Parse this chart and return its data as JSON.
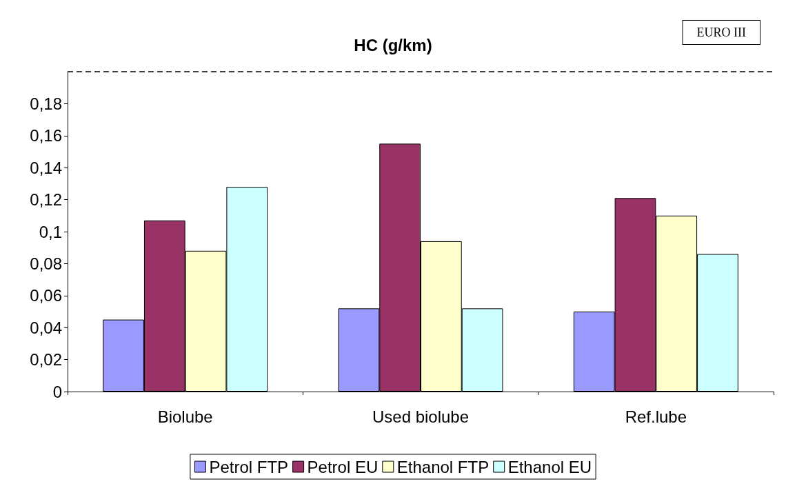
{
  "chart_data": {
    "type": "bar",
    "title": "HC (g/km)",
    "categories": [
      "Biolube",
      "Used biolube",
      "Ref.lube"
    ],
    "series": [
      {
        "name": "Petrol FTP",
        "color": "#9999ff",
        "values": [
          0.045,
          0.052,
          0.05
        ]
      },
      {
        "name": "Petrol EU",
        "color": "#993366",
        "values": [
          0.107,
          0.155,
          0.121
        ]
      },
      {
        "name": "Ethanol FTP",
        "color": "#ffffcc",
        "values": [
          0.088,
          0.094,
          0.11
        ]
      },
      {
        "name": "Ethanol EU",
        "color": "#ccffff",
        "values": [
          0.128,
          0.052,
          0.086
        ]
      }
    ],
    "ylim": [
      0,
      0.2
    ],
    "yticks": [
      {
        "value": 0,
        "label": "0"
      },
      {
        "value": 0.02,
        "label": "0,02"
      },
      {
        "value": 0.04,
        "label": "0,04"
      },
      {
        "value": 0.06,
        "label": "0,06"
      },
      {
        "value": 0.08,
        "label": "0,08"
      },
      {
        "value": 0.1,
        "label": "0,1"
      },
      {
        "value": 0.12,
        "label": "0,12"
      },
      {
        "value": 0.14,
        "label": "0,14"
      },
      {
        "value": 0.16,
        "label": "0,16"
      },
      {
        "value": 0.18,
        "label": "0,18"
      }
    ],
    "ref_lines": [
      {
        "axis": "y",
        "value": 0.2,
        "label": "EURO III",
        "color": "#000000",
        "line_style": "dashed"
      }
    ],
    "grid": false,
    "legend": "bottom"
  }
}
